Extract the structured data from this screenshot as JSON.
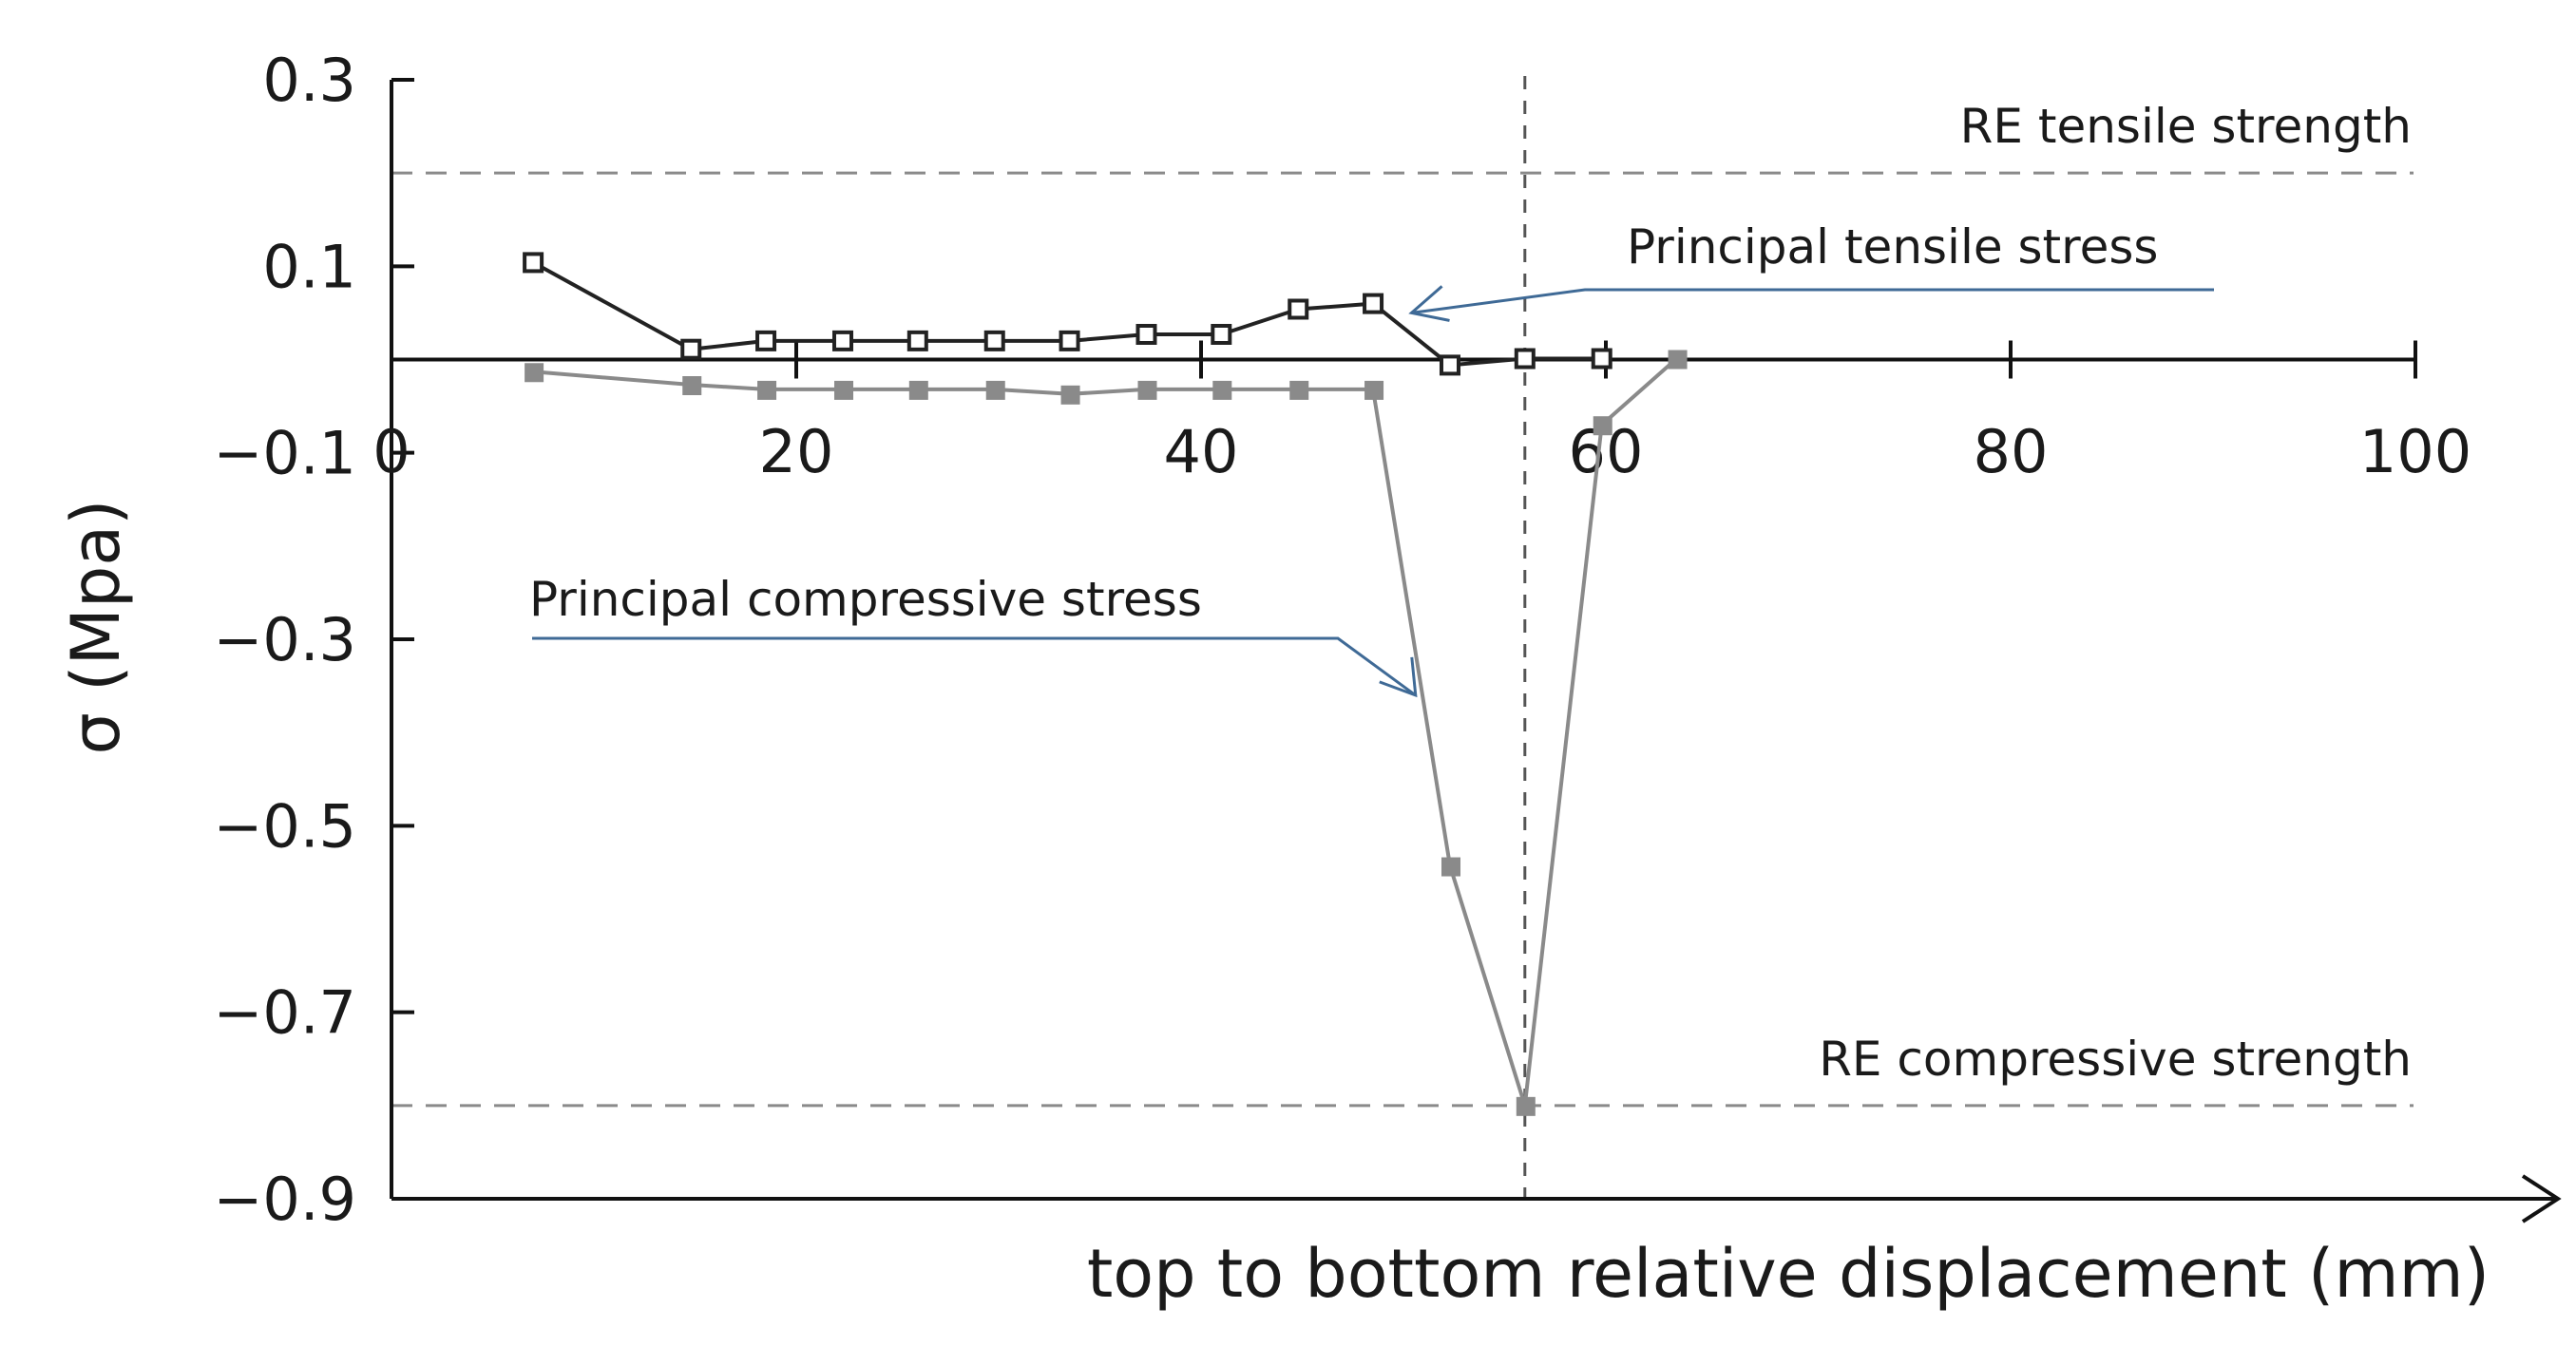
{
  "chart_data": {
    "type": "line",
    "title": "",
    "xlabel": "top to bottom relative displacement (mm)",
    "ylabel": "σ (Mpa)",
    "xlim": [
      0,
      100
    ],
    "ylim": [
      -0.9,
      0.3
    ],
    "x_ticks": [
      0,
      20,
      40,
      60,
      80,
      100
    ],
    "x_tick_labels": [
      "0",
      "20",
      "40",
      "60",
      "80",
      "100"
    ],
    "y_ticks": [
      0.3,
      0.1,
      -0.1,
      -0.3,
      -0.5,
      -0.7,
      -0.9
    ],
    "y_tick_labels": [
      "0.3",
      "0.1",
      "−0.1",
      "−0.3",
      "−0.5",
      "−0.7",
      "−0.9"
    ],
    "grid": false,
    "series": [
      {
        "name": "Principal tensile stress",
        "color": "#222222",
        "marker": "open-square",
        "x": [
          7,
          14.8,
          18.5,
          22.3,
          26,
          29.8,
          33.5,
          37.3,
          41,
          44.8,
          48.5,
          52.3,
          56,
          59.8
        ],
        "y": [
          0.104,
          0.011,
          0.02,
          0.02,
          0.02,
          0.02,
          0.02,
          0.027,
          0.027,
          0.054,
          0.06,
          -0.006,
          0.001,
          0.001
        ]
      },
      {
        "name": "Principal compressive stress",
        "color": "#8a8a8a",
        "marker": "filled-square",
        "x": [
          7,
          14.8,
          18.5,
          22.3,
          26,
          29.8,
          33.5,
          37.3,
          41,
          44.8,
          48.5,
          52.3,
          56,
          59.8,
          63.5
        ],
        "y": [
          -0.013,
          -0.027,
          -0.032,
          -0.032,
          -0.032,
          -0.032,
          -0.037,
          -0.032,
          -0.032,
          -0.032,
          -0.032,
          -0.543,
          -0.8,
          -0.07,
          0.001
        ]
      }
    ],
    "reference_lines": [
      {
        "orientation": "horizontal",
        "value": 0.2,
        "label": "RE tensile strength",
        "style": "dashed",
        "color": "#8a8a8a"
      },
      {
        "orientation": "horizontal",
        "value": -0.8,
        "label": "RE compressive strength",
        "style": "dashed",
        "color": "#8a8a8a"
      },
      {
        "orientation": "vertical",
        "value": 56,
        "label": "",
        "style": "dashed",
        "color": "#555555"
      }
    ],
    "annotations": [
      {
        "text": "Principal tensile stress",
        "arrow_color": "#3f6a96",
        "points_to_series": "Principal tensile stress",
        "points_to_x": 50.4
      },
      {
        "text": "Principal compressive stress",
        "arrow_color": "#3f6a96",
        "points_to_series": "Principal compressive stress",
        "points_to_x": 50.6
      }
    ]
  }
}
